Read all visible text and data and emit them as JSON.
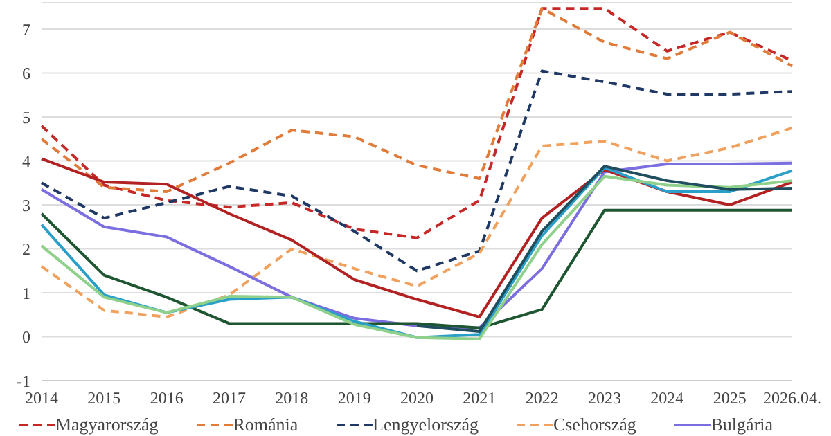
{
  "chart_data": {
    "type": "line",
    "categories": [
      "2014",
      "2015",
      "2016",
      "2017",
      "2018",
      "2019",
      "2020",
      "2021",
      "2022",
      "2023",
      "2024",
      "2025",
      "2026.04."
    ],
    "ylim": [
      -1,
      7.6
    ],
    "yticks": [
      -1,
      0,
      1,
      2,
      3,
      4,
      5,
      6,
      7
    ],
    "grid": "y",
    "legend": "bottom",
    "marker": "none",
    "series": [
      {
        "name": "Magyarország",
        "color": "#c62828",
        "line_style": "dashed",
        "values": [
          4.8,
          3.45,
          3.1,
          2.95,
          3.05,
          2.45,
          2.25,
          3.1,
          7.47,
          7.47,
          6.5,
          6.93,
          6.28
        ]
      },
      {
        "name": "Románia",
        "color": "#e07b39",
        "line_style": "dashed",
        "values": [
          4.5,
          3.4,
          3.3,
          3.95,
          4.7,
          4.55,
          3.9,
          3.6,
          7.47,
          6.7,
          6.33,
          6.93,
          6.16
        ]
      },
      {
        "name": "Lengyelország",
        "color": "#1f3864",
        "line_style": "dashed",
        "values": [
          3.5,
          2.7,
          3.05,
          3.42,
          3.2,
          2.4,
          1.5,
          1.95,
          6.05,
          5.8,
          5.52,
          5.52,
          5.58
        ]
      },
      {
        "name": "Csehország",
        "color": "#f0a15e",
        "line_style": "dashed",
        "values": [
          1.6,
          0.6,
          0.45,
          0.95,
          2.0,
          1.55,
          1.15,
          1.9,
          4.34,
          4.45,
          4.0,
          4.3,
          4.75
        ]
      },
      {
        "name": "Bulgária",
        "color": "#7b6ee0",
        "line_style": "solid",
        "values": [
          3.35,
          2.5,
          2.27,
          1.6,
          0.9,
          0.42,
          0.25,
          0.2,
          1.55,
          3.75,
          3.93,
          3.93,
          3.95
        ]
      },
      {
        "color": "#b22222",
        "line_style": "solid",
        "values": [
          4.05,
          3.52,
          3.47,
          2.8,
          2.2,
          1.3,
          0.85,
          0.45,
          2.7,
          3.8,
          3.3,
          3.0,
          3.52
        ]
      },
      {
        "color": "#1e5631",
        "line_style": "solid",
        "values": [
          2.8,
          1.4,
          0.9,
          0.3,
          0.3,
          0.3,
          0.3,
          0.2,
          0.62,
          2.88,
          2.88,
          2.88,
          2.88
        ]
      },
      {
        "color": "#2a9fc8",
        "line_style": "solid",
        "values": [
          2.55,
          0.95,
          0.55,
          0.85,
          0.9,
          0.35,
          -0.02,
          0.05,
          2.3,
          3.85,
          3.3,
          3.3,
          3.78
        ]
      },
      {
        "color": "#8fd18a",
        "line_style": "solid",
        "values": [
          2.07,
          0.9,
          0.55,
          0.92,
          0.9,
          0.28,
          -0.02,
          -0.05,
          2.1,
          3.65,
          3.45,
          3.4,
          3.55
        ]
      },
      {
        "color": "#1f4e5f",
        "line_style": "solid",
        "values": [
          null,
          null,
          null,
          null,
          null,
          null,
          0.25,
          0.12,
          2.4,
          3.88,
          3.55,
          3.35,
          3.38
        ]
      }
    ]
  }
}
